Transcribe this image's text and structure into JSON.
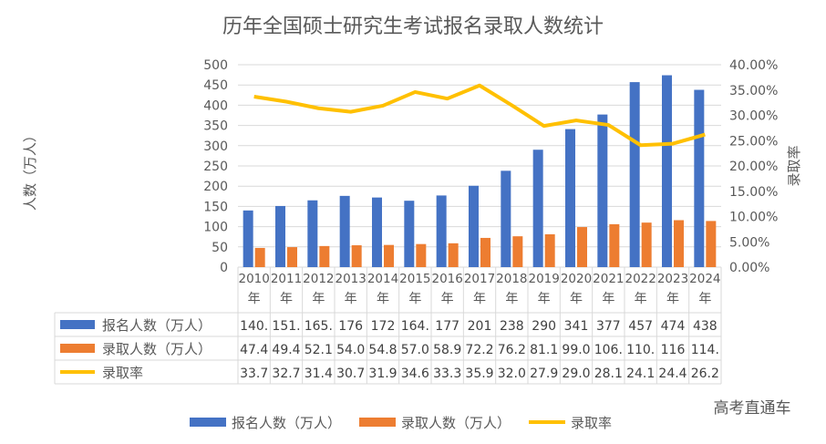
{
  "chart_data": {
    "type": "bar",
    "title": "历年全国硕士研究生考试报名录取人数统计",
    "ylabel": "人数（万人）",
    "y2label": "录取率",
    "ylim": [
      0,
      500
    ],
    "y2lim": [
      0,
      40
    ],
    "yticks": [
      "0",
      "50",
      "100",
      "150",
      "200",
      "250",
      "300",
      "350",
      "400",
      "450",
      "500"
    ],
    "y2ticks": [
      "0.00%",
      "5.00%",
      "10.00%",
      "15.00%",
      "20.00%",
      "25.00%",
      "30.00%",
      "35.00%",
      "40.00%"
    ],
    "grid": true,
    "legend_position": "bottom",
    "categories": [
      "2010年",
      "2011年",
      "2012年",
      "2013年",
      "2014年",
      "2015年",
      "2016年",
      "2017年",
      "2018年",
      "2019年",
      "2020年",
      "2021年",
      "2022年",
      "2023年",
      "2024年"
    ],
    "series": [
      {
        "name": "报名人数（万人）",
        "type": "bar",
        "color": "#4472C4",
        "axis": "left",
        "values": [
          140,
          151,
          165,
          176,
          172,
          164,
          177,
          201,
          238,
          290,
          341,
          377,
          457,
          474,
          438
        ],
        "table": [
          "140.",
          "151.",
          "165.",
          "176",
          "172",
          "164.",
          "177",
          "201",
          "238",
          "290",
          "341",
          "377",
          "457",
          "474",
          "438"
        ]
      },
      {
        "name": "录取人数（万人）",
        "type": "bar",
        "color": "#ED7D31",
        "axis": "left",
        "values": [
          47.4,
          49.4,
          52.1,
          54.0,
          54.8,
          57.0,
          58.9,
          72.2,
          76.2,
          81.1,
          99.0,
          106,
          110,
          116,
          114
        ],
        "table": [
          "47.4",
          "49.4",
          "52.1",
          "54.0",
          "54.8",
          "57.0",
          "58.9",
          "72.2",
          "76.2",
          "81.1",
          "99.0",
          "106.",
          "110.",
          "116",
          "114."
        ]
      },
      {
        "name": "录取率",
        "type": "line",
        "color": "#FFC000",
        "axis": "right",
        "values": [
          33.7,
          32.7,
          31.4,
          30.7,
          31.9,
          34.6,
          33.3,
          35.9,
          32.0,
          27.9,
          29.0,
          28.1,
          24.1,
          24.4,
          26.2
        ],
        "table": [
          "33.7",
          "32.7",
          "31.4",
          "30.7",
          "31.9",
          "34.6",
          "33.3",
          "35.9",
          "32.0",
          "27.9",
          "29.0",
          "28.1",
          "24.1",
          "24.4",
          "26.2"
        ]
      }
    ]
  },
  "watermark": "高考直通车"
}
